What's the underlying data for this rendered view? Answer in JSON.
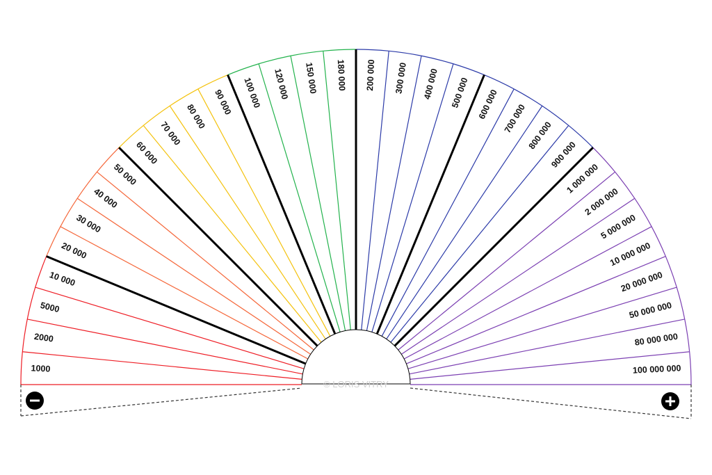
{
  "title": "",
  "watermark": "© LORIS VITRY",
  "minus_symbol": "−",
  "plus_symbol": "+",
  "colors": {
    "red": "#ee1c24",
    "orange": "#f5673a",
    "yellow": "#f4c20d",
    "green": "#22b24c",
    "blue": "#2b3aa8",
    "purple": "#7b3fb2",
    "divider": "#000000"
  },
  "segments": [
    {
      "label": "1000",
      "color": "red"
    },
    {
      "label": "2000",
      "color": "red"
    },
    {
      "label": "5000",
      "color": "red"
    },
    {
      "label": "10 000",
      "color": "red"
    },
    {
      "label": "20 000",
      "color": "orange"
    },
    {
      "label": "30 000",
      "color": "orange"
    },
    {
      "label": "40 000",
      "color": "orange"
    },
    {
      "label": "50 000",
      "color": "orange"
    },
    {
      "label": "60 000",
      "color": "yellow"
    },
    {
      "label": "70 000",
      "color": "yellow"
    },
    {
      "label": "80 000",
      "color": "yellow"
    },
    {
      "label": "90 000",
      "color": "yellow"
    },
    {
      "label": "100 000",
      "color": "green"
    },
    {
      "label": "120 000",
      "color": "green"
    },
    {
      "label": "150 000",
      "color": "green"
    },
    {
      "label": "180 000",
      "color": "green"
    },
    {
      "label": "200 000",
      "color": "blue"
    },
    {
      "label": "300 000",
      "color": "blue"
    },
    {
      "label": "400 000",
      "color": "blue"
    },
    {
      "label": "500 000",
      "color": "blue"
    },
    {
      "label": "600 000",
      "color": "blue"
    },
    {
      "label": "700 000",
      "color": "blue"
    },
    {
      "label": "800 000",
      "color": "blue"
    },
    {
      "label": "900 000",
      "color": "blue"
    },
    {
      "label": "1 000 000",
      "color": "purple"
    },
    {
      "label": "2 000 000",
      "color": "purple"
    },
    {
      "label": "5 000 000",
      "color": "purple"
    },
    {
      "label": "10 000 000",
      "color": "purple"
    },
    {
      "label": "20 000 000",
      "color": "purple"
    },
    {
      "label": "50 000 000",
      "color": "purple"
    },
    {
      "label": "80 000 000",
      "color": "purple"
    },
    {
      "label": "100 000 000",
      "color": "purple"
    }
  ],
  "group_dividers_after": [
    3,
    7,
    11,
    15,
    19,
    23
  ]
}
